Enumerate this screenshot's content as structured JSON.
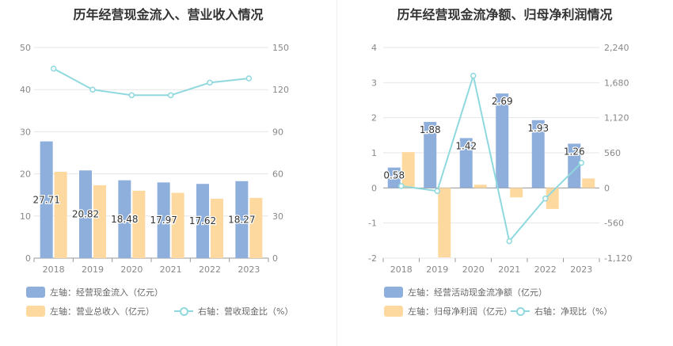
{
  "chart_data": [
    {
      "type": "bar",
      "title": "历年经营现金流入、营业收入情况",
      "categories": [
        "2018",
        "2019",
        "2020",
        "2021",
        "2022",
        "2023"
      ],
      "left_axis": {
        "ticks": [
          "0",
          "10",
          "20",
          "30",
          "40",
          "50"
        ],
        "min": 0,
        "max": 50
      },
      "right_axis": {
        "ticks": [
          "0",
          "30",
          "60",
          "90",
          "120",
          "150"
        ],
        "min": 0,
        "max": 150
      },
      "series": [
        {
          "name": "左轴：经营现金流入（亿元）",
          "kind": "bar",
          "axis": "left",
          "color": "#8eafdc",
          "values": [
            27.71,
            20.82,
            18.48,
            17.97,
            17.62,
            18.27
          ],
          "labels": [
            "27.71",
            "20.82",
            "18.48",
            "17.97",
            "17.62",
            "18.27"
          ]
        },
        {
          "name": "左轴：营业总收入（亿元）",
          "kind": "bar",
          "axis": "left",
          "color": "#fdd9a0",
          "values": [
            20.5,
            17.3,
            16.0,
            15.5,
            14.1,
            14.3
          ]
        },
        {
          "name": "右轴：营收现金比（%）",
          "kind": "line",
          "axis": "right",
          "color": "#8fd9de",
          "values": [
            135,
            120,
            116,
            116,
            125,
            128
          ]
        }
      ],
      "grid": true
    },
    {
      "type": "bar",
      "title": "历年经营现金流净额、归母净利润情况",
      "categories": [
        "2018",
        "2019",
        "2020",
        "2021",
        "2022",
        "2023"
      ],
      "left_axis": {
        "ticks": [
          "-2",
          "-1",
          "0",
          "1",
          "2",
          "3",
          "4"
        ],
        "min": -2,
        "max": 4
      },
      "right_axis": {
        "ticks": [
          "-1,120",
          "-560",
          "0",
          "560",
          "1,120",
          "1,680",
          "2,240"
        ],
        "min": -1120,
        "max": 2240
      },
      "series": [
        {
          "name": "左轴：经营活动现金流净额（亿元）",
          "kind": "bar",
          "axis": "left",
          "color": "#8eafdc",
          "values": [
            0.58,
            1.88,
            1.42,
            2.69,
            1.93,
            1.26
          ],
          "labels": [
            "0.58",
            "1.88",
            "1.42",
            "2.69",
            "1.93",
            "1.26"
          ]
        },
        {
          "name": "左轴：归母净利润（亿元）",
          "kind": "bar",
          "axis": "left",
          "color": "#fdd9a0",
          "values": [
            1.02,
            -1.98,
            0.09,
            -0.27,
            -0.6,
            0.27
          ]
        },
        {
          "name": "右轴：净现比（%）",
          "kind": "line",
          "axis": "right",
          "color": "#8fd9de",
          "values": [
            30,
            -50,
            1790,
            -850,
            -170,
            400
          ]
        }
      ],
      "grid": true
    }
  ]
}
